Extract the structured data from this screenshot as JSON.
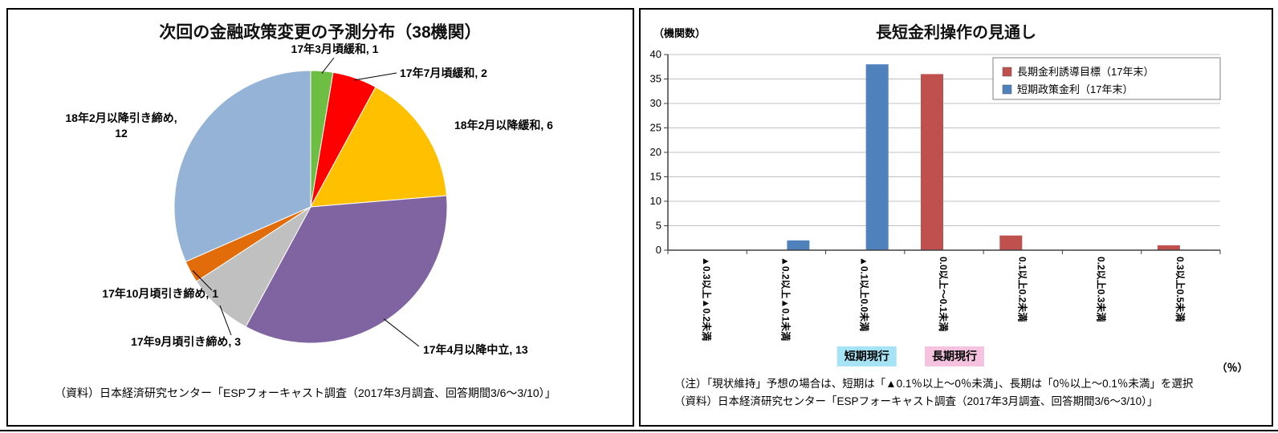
{
  "panels": {
    "pie": {
      "title": "次回の金融政策変更の予測分布（38機関）",
      "source": "（資料）日本経済研究センター「ESPフォーキャスト調査（2017年3月調査、回答期間3/6～3/10）」"
    },
    "bar": {
      "title": "長短金利操作の見通し",
      "y_axis_label": "（機関数）",
      "x_axis_unit": "（％）",
      "notes": [
        "（注）「現状維持」予想の場合は、短期は「▲0.1％以上～0％未満」、長期は「0％以上～0.1％未満」を選択",
        "（資料）日本経済研究センター「ESPフォーキャスト調査（2017年3月調査、回答期間3/6～3/10）」"
      ],
      "annotations": [
        {
          "text": "短期現行",
          "bg": "#A5E3F5",
          "category_index": 2
        },
        {
          "text": "長期現行",
          "bg": "#F5C3DF",
          "category_index": 3
        }
      ]
    }
  },
  "chart_data": [
    {
      "type": "pie",
      "title": "次回の金融政策変更の予測分布（38機関）",
      "total": 38,
      "start_angle_deg": 0,
      "direction": "clockwise",
      "slices": [
        {
          "label": "17年3月頃緩和",
          "value": 1,
          "color": "#6FBE44"
        },
        {
          "label": "17年7月頃緩和",
          "value": 2,
          "color": "#FF0000"
        },
        {
          "label": "18年2月以降緩和",
          "value": 6,
          "color": "#FFC000"
        },
        {
          "label": "17年4月以降中立",
          "value": 13,
          "color": "#8064A2"
        },
        {
          "label": "17年9月頃引き締め",
          "value": 3,
          "color": "#C0C0C0"
        },
        {
          "label": "17年10月頃引き締め",
          "value": 1,
          "color": "#E26B0A"
        },
        {
          "label": "18年2月以降引き締め",
          "value": 12,
          "color": "#95B3D7"
        }
      ]
    },
    {
      "type": "bar",
      "title": "長短金利操作の見通し",
      "ylabel": "（機関数）",
      "xunit": "（％）",
      "ylim": [
        0,
        40
      ],
      "ytick_step": 5,
      "grid": true,
      "legend_position": "top-right",
      "categories": [
        "▲0.3以上▲0.2未満",
        "▲0.2以上▲0.1未満",
        "▲0.1以上0.0未満",
        "0.0以上～0.1未満",
        "0.1以上0.2未満",
        "0.2以上0.3未満",
        "0.3以上0.5未満"
      ],
      "series": [
        {
          "name": "長期金利誘導目標（17年末）",
          "color": "#C0504D",
          "values": [
            0,
            0,
            0,
            36,
            3,
            0,
            1
          ]
        },
        {
          "name": "短期政策金利（17年末）",
          "color": "#4F81BD",
          "values": [
            0,
            2,
            38,
            0,
            0,
            0,
            0
          ]
        }
      ]
    }
  ]
}
